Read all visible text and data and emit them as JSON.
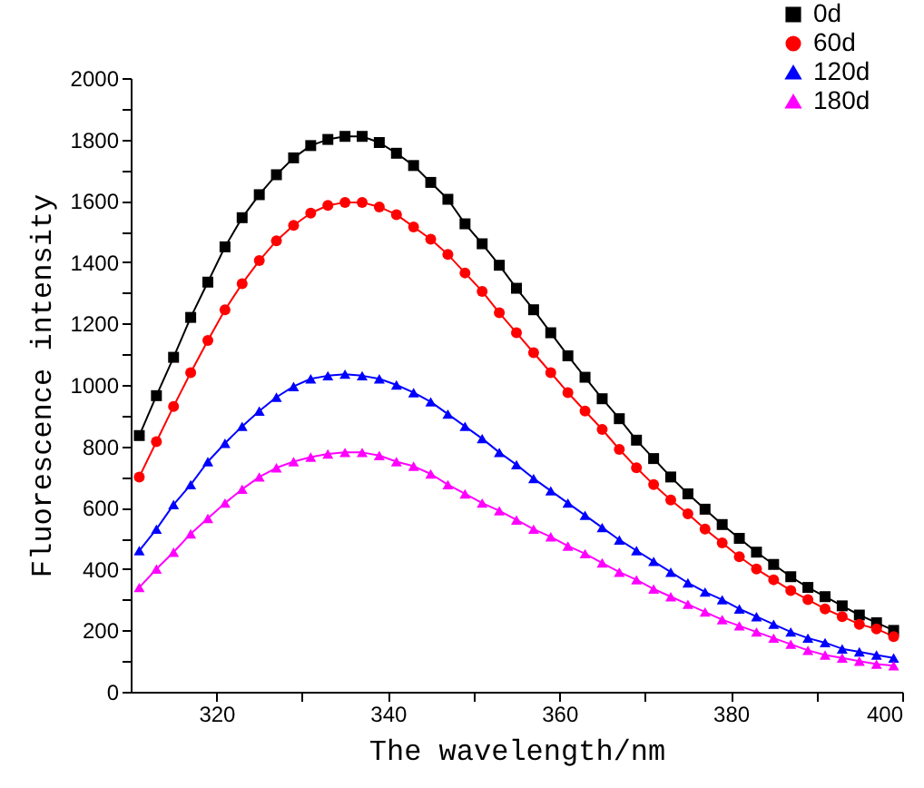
{
  "chart_data": {
    "type": "line",
    "xlabel": "The wavelength/nm",
    "ylabel": "Fluorescence intensity",
    "x": [
      311,
      313,
      315,
      317,
      319,
      321,
      323,
      325,
      327,
      329,
      331,
      333,
      335,
      337,
      339,
      341,
      343,
      345,
      347,
      349,
      351,
      353,
      355,
      357,
      359,
      361,
      363,
      365,
      367,
      369,
      371,
      373,
      375,
      377,
      379,
      381,
      383,
      385,
      387,
      389,
      391,
      393,
      395,
      397,
      399
    ],
    "series": [
      {
        "name": "0d",
        "color": "#000000",
        "marker": "square",
        "values": [
          835,
          965,
          1090,
          1220,
          1335,
          1450,
          1545,
          1620,
          1685,
          1740,
          1780,
          1800,
          1810,
          1810,
          1790,
          1755,
          1715,
          1660,
          1605,
          1525,
          1460,
          1390,
          1315,
          1245,
          1170,
          1095,
          1025,
          955,
          890,
          820,
          760,
          700,
          645,
          595,
          545,
          500,
          455,
          415,
          375,
          340,
          310,
          280,
          250,
          225,
          200
        ]
      },
      {
        "name": "60d",
        "color": "#ff0000",
        "marker": "circle",
        "values": [
          700,
          815,
          930,
          1040,
          1145,
          1245,
          1330,
          1405,
          1470,
          1520,
          1560,
          1585,
          1595,
          1595,
          1580,
          1555,
          1515,
          1475,
          1425,
          1365,
          1305,
          1235,
          1170,
          1105,
          1040,
          975,
          915,
          855,
          790,
          730,
          675,
          625,
          580,
          530,
          485,
          440,
          400,
          365,
          330,
          300,
          270,
          245,
          220,
          205,
          180
        ]
      },
      {
        "name": "120d",
        "color": "#0000ff",
        "marker": "triangle",
        "values": [
          460,
          530,
          610,
          675,
          750,
          810,
          865,
          915,
          960,
          995,
          1020,
          1030,
          1035,
          1030,
          1020,
          1000,
          975,
          945,
          905,
          865,
          825,
          780,
          740,
          695,
          655,
          615,
          575,
          535,
          495,
          460,
          425,
          390,
          355,
          325,
          300,
          270,
          245,
          220,
          195,
          175,
          160,
          140,
          130,
          120,
          110
        ]
      },
      {
        "name": "180d",
        "color": "#ff00ff",
        "marker": "triangle",
        "values": [
          340,
          400,
          455,
          515,
          565,
          615,
          660,
          700,
          730,
          750,
          765,
          775,
          780,
          780,
          770,
          750,
          735,
          710,
          675,
          645,
          615,
          590,
          560,
          530,
          505,
          475,
          450,
          420,
          390,
          365,
          335,
          310,
          285,
          260,
          235,
          215,
          195,
          175,
          155,
          135,
          120,
          110,
          100,
          90,
          85
        ]
      }
    ],
    "xlim": [
      310,
      400
    ],
    "xticks": [
      320,
      {
        "value": 330,
        "label": null
      },
      340,
      {
        "value": 350,
        "label": null
      },
      360,
      {
        "value": 370,
        "label": null
      },
      380,
      {
        "value": 390,
        "label": null
      },
      400
    ],
    "ylim": [
      0,
      2000
    ],
    "yticks": [
      0,
      {
        "value": 100,
        "label": null
      },
      200,
      {
        "value": 300,
        "label": null
      },
      400,
      {
        "value": 500,
        "label": null
      },
      600,
      {
        "value": 700,
        "label": null
      },
      800,
      {
        "value": 900,
        "label": null
      },
      1000,
      {
        "value": 1100,
        "label": null
      },
      1200,
      {
        "value": 1300,
        "label": null
      },
      1400,
      {
        "value": 1500,
        "label": null
      },
      1600,
      {
        "value": 1700,
        "label": null
      },
      1800,
      {
        "value": 1900,
        "label": null
      },
      2000
    ],
    "legend": "top right",
    "grid": false,
    "line_style": "solid"
  }
}
